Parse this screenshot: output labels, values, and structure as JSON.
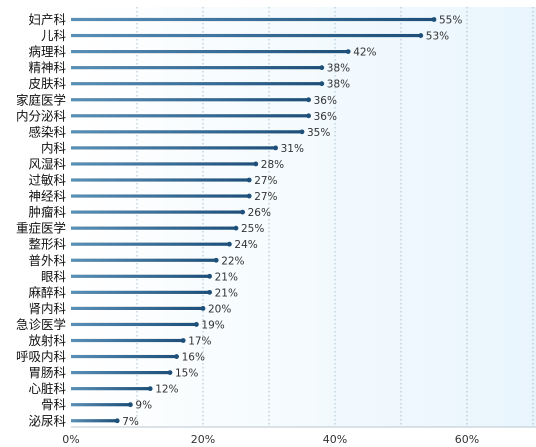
{
  "chart_data": {
    "type": "bar",
    "orientation": "horizontal",
    "categories": [
      "妇产科",
      "儿科",
      "病理科",
      "精神科",
      "皮肤科",
      "家庭医学",
      "内分泌科",
      "感染科",
      "内科",
      "风湿科",
      "过敏科",
      "神经科",
      "肿瘤科",
      "重症医学",
      "整形科",
      "普外科",
      "眼科",
      "麻醉科",
      "肾内科",
      "急诊医学",
      "放射科",
      "呼吸内科",
      "胃肠科",
      "心脏科",
      "骨科",
      "泌尿科"
    ],
    "values": [
      55,
      53,
      42,
      38,
      38,
      36,
      36,
      35,
      31,
      28,
      27,
      27,
      26,
      25,
      24,
      22,
      21,
      21,
      20,
      19,
      17,
      16,
      15,
      12,
      9,
      7
    ],
    "value_labels": [
      "55%",
      "53%",
      "42%",
      "38%",
      "38%",
      "36%",
      "36%",
      "35%",
      "31%",
      "28%",
      "27%",
      "27%",
      "26%",
      "25%",
      "24%",
      "22%",
      "21%",
      "21%",
      "20%",
      "19%",
      "17%",
      "16%",
      "15%",
      "12%",
      "9%",
      "7%"
    ],
    "x_ticks": [
      0,
      20,
      40,
      60
    ],
    "x_tick_labels": [
      "0%",
      "20%",
      "40%",
      "60%"
    ],
    "xlim": [
      0,
      70
    ],
    "grid": "vertical dotted",
    "colors": {
      "bar_dark": "#1d4f79",
      "bar_light": "#5a8fb6",
      "plot_bg_left": "#ffffff",
      "plot_bg_right": "#e9f5fd",
      "grid": "#6f8fa6",
      "axis": "#b9c7d2"
    }
  }
}
